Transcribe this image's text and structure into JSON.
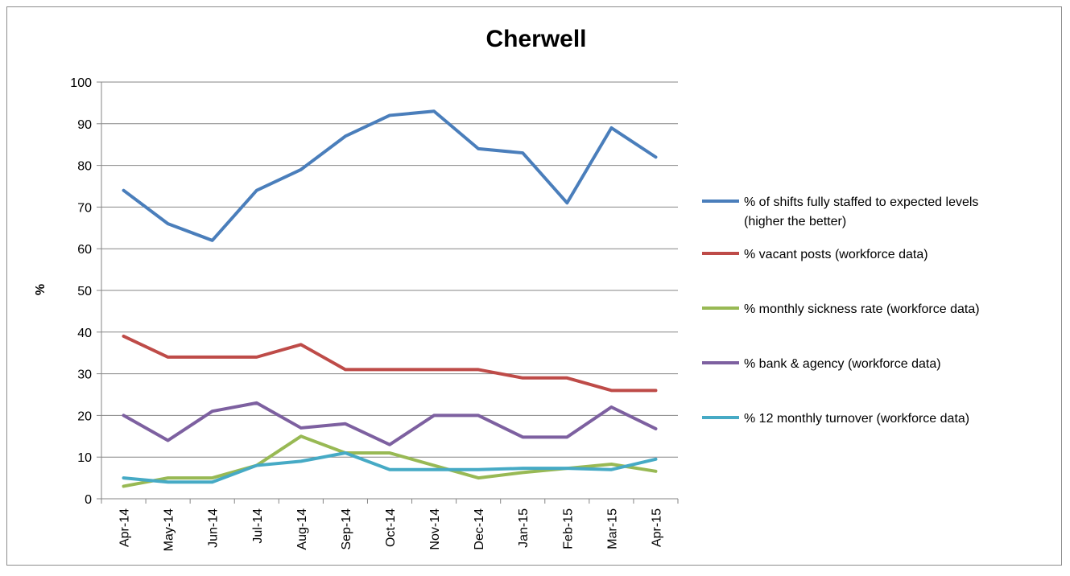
{
  "chart_data": {
    "type": "line",
    "title": "Cherwell",
    "xlabel": "",
    "ylabel": "%",
    "ylim": [
      0,
      100
    ],
    "yticks": [
      0,
      10,
      20,
      30,
      40,
      50,
      60,
      70,
      80,
      90,
      100
    ],
    "grid": true,
    "legend_position": "right",
    "categories": [
      "Apr-14",
      "May-14",
      "Jun-14",
      "Jul-14",
      "Aug-14",
      "Sep-14",
      "Oct-14",
      "Nov-14",
      "Dec-14",
      "Jan-15",
      "Feb-15",
      "Mar-15",
      "Apr-15"
    ],
    "series": [
      {
        "name": "% of shifts fully staffed to expected levels (higher the better)",
        "legend_lines": [
          "% of shifts fully staffed to expected levels",
          "(higher the better)"
        ],
        "color": "#4A7EBB",
        "values": [
          74,
          66,
          62,
          74,
          79,
          87,
          92,
          93,
          84,
          83,
          71,
          89,
          82
        ]
      },
      {
        "name": "% vacant posts (workforce data)",
        "legend_lines": [
          "% vacant posts (workforce data)"
        ],
        "color": "#BE4B48",
        "values": [
          39,
          34,
          34,
          34,
          37,
          31,
          31,
          31,
          31,
          29,
          29,
          26,
          26
        ]
      },
      {
        "name": "% monthly sickness rate (workforce data)",
        "legend_lines": [
          "% monthly sickness rate (workforce data)"
        ],
        "color": "#98B954",
        "values": [
          3,
          5,
          5,
          8,
          15,
          11,
          11,
          8,
          5,
          6.3,
          7.3,
          8.3,
          6.6
        ]
      },
      {
        "name": "% bank & agency (workforce data)",
        "legend_lines": [
          "% bank & agency (workforce data)"
        ],
        "color": "#7D60A0",
        "values": [
          20,
          14,
          21,
          23,
          17,
          18,
          13,
          20,
          20,
          14.8,
          14.8,
          22,
          16.8
        ]
      },
      {
        "name": "% 12 monthly turnover (workforce data)",
        "legend_lines": [
          "% 12 monthly turnover (workforce data)"
        ],
        "color": "#46AAC5",
        "values": [
          5,
          4,
          4,
          8,
          9,
          11,
          7,
          7,
          7,
          7.3,
          7.3,
          7,
          9.5
        ]
      }
    ]
  }
}
